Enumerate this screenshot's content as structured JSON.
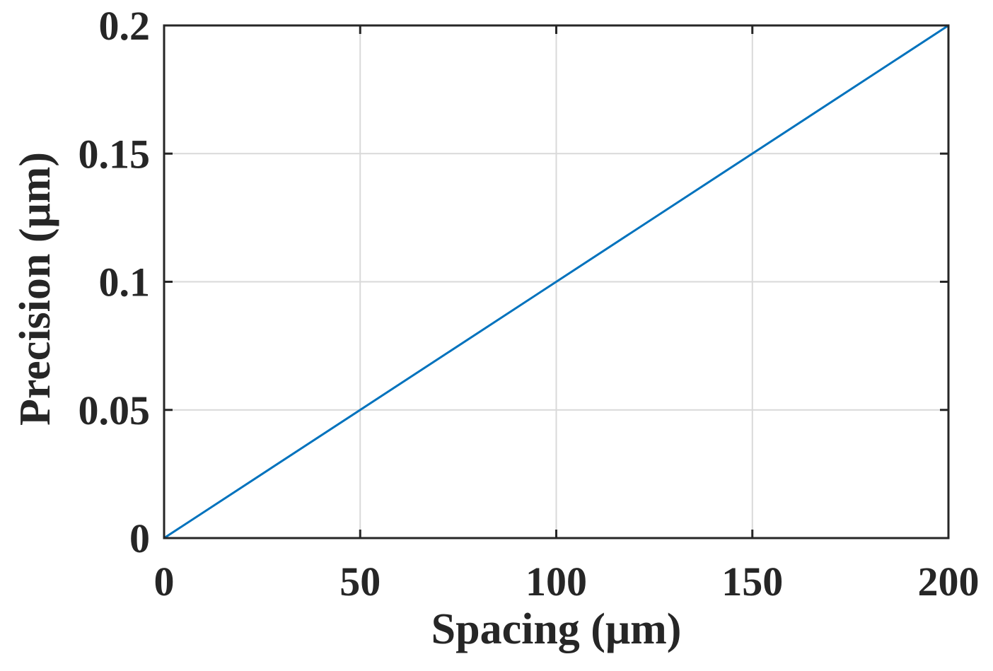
{
  "chart_data": {
    "type": "line",
    "title": "",
    "xlabel": "Spacing (μm)",
    "ylabel": "Precision (μm)",
    "xlim": [
      0,
      200
    ],
    "ylim": [
      0,
      0.2
    ],
    "xticks": [
      0,
      50,
      100,
      150,
      200
    ],
    "xtick_labels": [
      "0",
      "50",
      "100",
      "150",
      "200"
    ],
    "yticks": [
      0,
      0.05,
      0.1,
      0.15,
      0.2
    ],
    "ytick_labels": [
      "0",
      "0.05",
      "0.1",
      "0.15",
      "0.2"
    ],
    "grid": true,
    "series": [
      {
        "x": [
          0,
          50,
          100,
          150,
          200
        ],
        "y": [
          0,
          0.05,
          0.1,
          0.15,
          0.2
        ],
        "color": "#0072BD"
      }
    ]
  },
  "colors": {
    "series": "#0072BD",
    "axis": "#262626",
    "grid": "#d9d9d9"
  }
}
